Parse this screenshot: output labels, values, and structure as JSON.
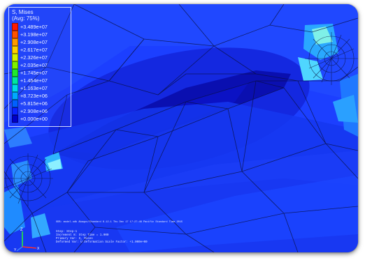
{
  "contour_legend": {
    "title": "S, Mises",
    "subtitle": "(Avg: 75%)",
    "entries": [
      {
        "value": "+3.489e+07",
        "color": "#ff1a00"
      },
      {
        "value": "+3.198e+07",
        "color": "#ff5200"
      },
      {
        "value": "+2.908e+07",
        "color": "#ff9a00"
      },
      {
        "value": "+2.617e+07",
        "color": "#ffd000"
      },
      {
        "value": "+2.326e+07",
        "color": "#d4f200"
      },
      {
        "value": "+2.035e+07",
        "color": "#7ef000"
      },
      {
        "value": "+1.745e+07",
        "color": "#20e830"
      },
      {
        "value": "+1.454e+07",
        "color": "#00e6a0"
      },
      {
        "value": "+1.163e+07",
        "color": "#00d8e8"
      },
      {
        "value": "+8.723e+06",
        "color": "#00a8ff"
      },
      {
        "value": "+5.815e+06",
        "color": "#0060ff"
      },
      {
        "value": "+2.908e+06",
        "color": "#0a22ff"
      },
      {
        "value": "+0.000e+00",
        "color": "#0000c8"
      }
    ]
  },
  "viewport": {
    "background_color": "#1c3fff",
    "info_line_1": "ODB: model.odb  Abaqus/Standard 6.12-1  Thu Dec 17 17:27:46 Pacific Standard Time 2015",
    "info_line_2": "Step: Step-1",
    "info_line_3": "Increment    8: Step Time =    1.000",
    "info_line_4": "Primary Var: S, Mises",
    "info_line_5": "Deformed Var: U  Deformation Scale Factor: +1.000e+00"
  },
  "triad": {
    "x_label": "X",
    "y_label": "Y",
    "z_label": "Z"
  }
}
